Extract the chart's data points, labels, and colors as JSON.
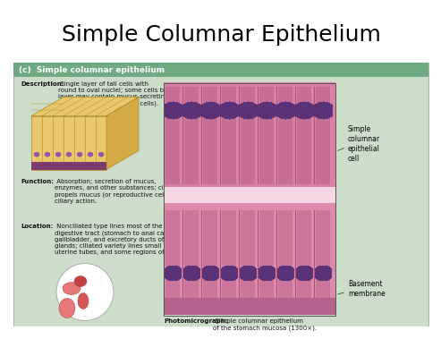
{
  "title": "Simple Columnar Epithelium",
  "title_fontsize": 18,
  "title_color": "#000000",
  "background_color": "#ffffff",
  "panel_bg": "#ccdeca",
  "panel_header_bg": "#6faa82",
  "panel_header_text": "(c)  Simple columnar epithelium",
  "panel_header_fontsize": 6.5,
  "panel_header_color": "#ffffff",
  "description_bold": "Description:",
  "description_text": " Single layer of tall cells with\nround to oval nuclei; some cells bear cilia;\nlayer may contain mucus-secreting\nunicellular glands (goblet cells).",
  "function_bold": "Function:",
  "function_text": " Absorption; secretion of mucus,\nenzymes, and other substances; ciliated type\npropels mucus (or reproductive cells) by\nciliary action.",
  "location_bold": "Location:",
  "location_text": " Nonciliated type lines most of the\ndigestive tract (stomach to anal canal),\ngallbladder, and excretory ducts of some\nglands; ciliated variety lines small bronchi,\nuterine tubes, and some regions of the uterus.",
  "photo_caption_bold": "Photomicrograph:",
  "photo_caption_text": " Simple columnar epithelium\nof the stomach mucosa (1300×).",
  "label1": "Simple\ncolumnar\nepithelial\ncell",
  "label2": "Basement\nmembrane",
  "text_fontsize": 5.0,
  "label_fontsize": 5.5
}
